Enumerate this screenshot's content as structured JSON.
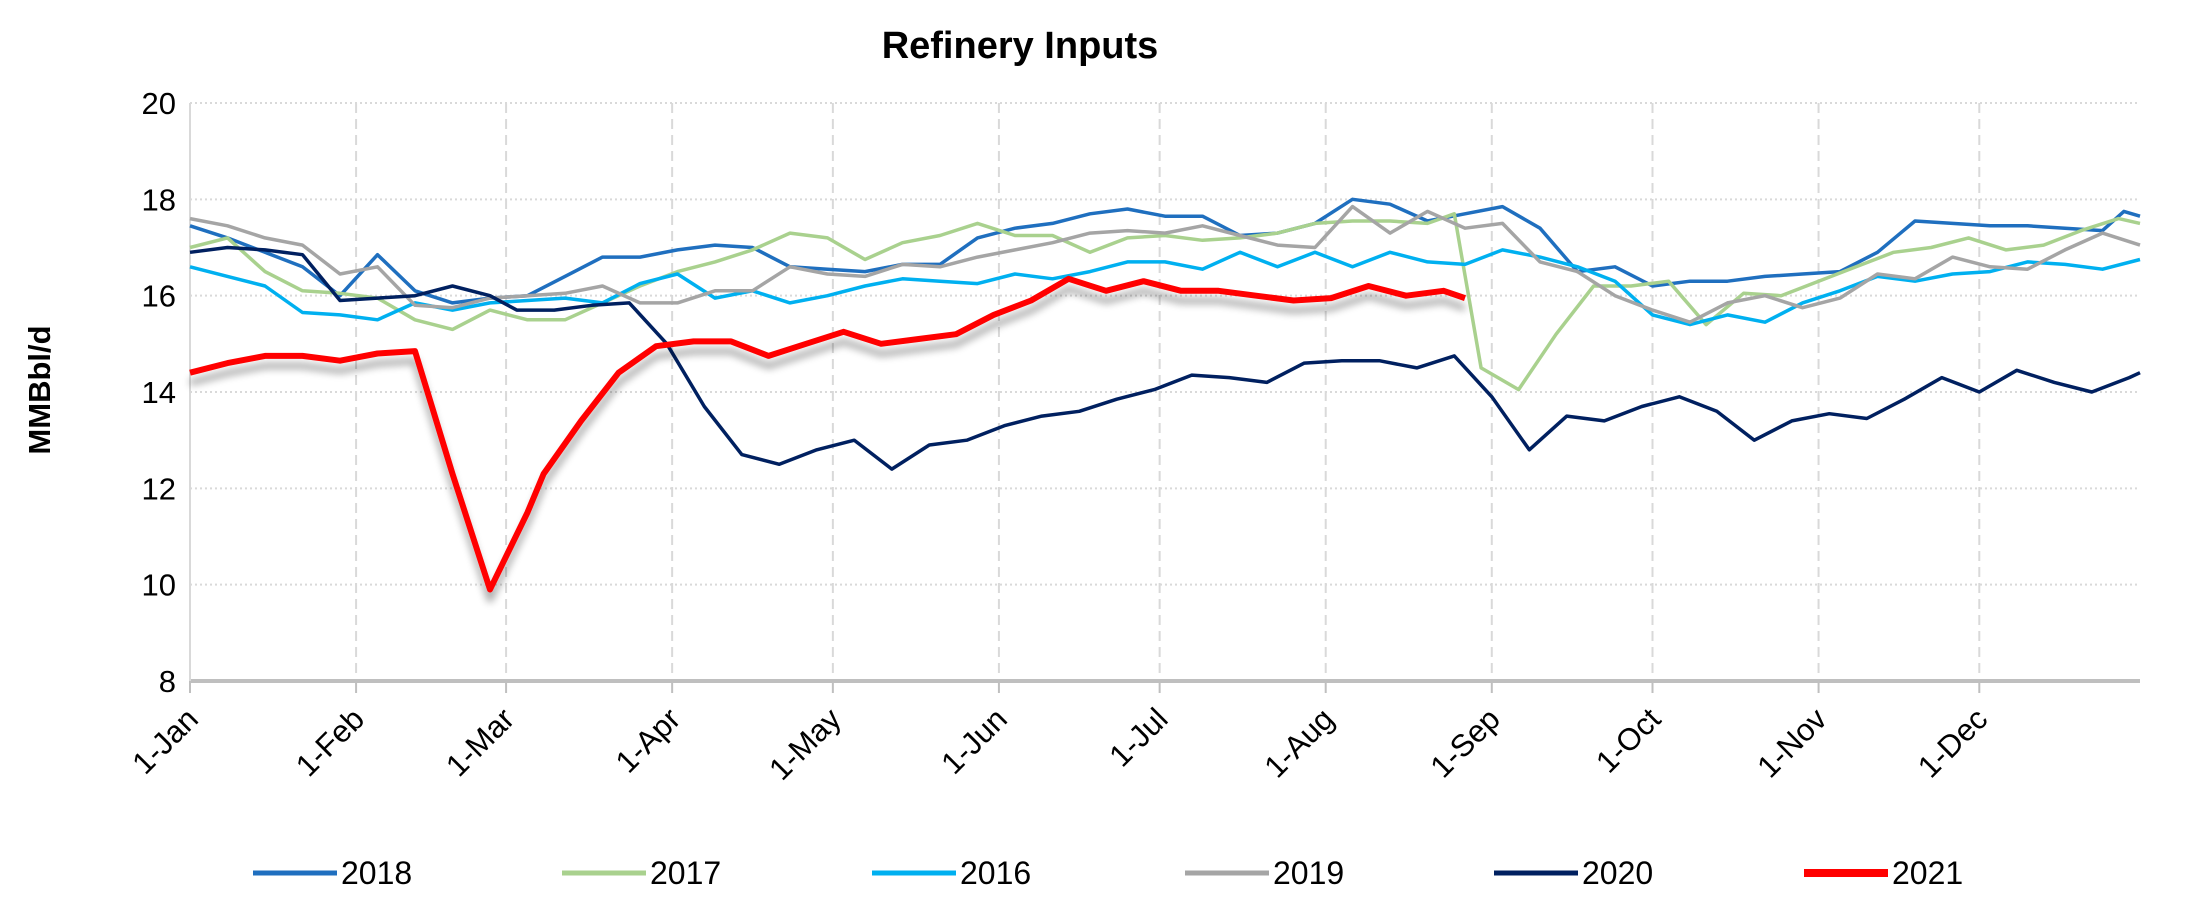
{
  "chart_data": {
    "type": "line",
    "title": "Refinery Inputs",
    "ylabel": "MMBbl/d",
    "xlabel": "",
    "ylim": [
      8,
      20
    ],
    "yticks": [
      8,
      10,
      12,
      14,
      16,
      18,
      20
    ],
    "xticks": [
      {
        "date": "01-01",
        "label": "1-Jan"
      },
      {
        "date": "02-01",
        "label": "1-Feb"
      },
      {
        "date": "03-01",
        "label": "1-Mar"
      },
      {
        "date": "04-01",
        "label": "1-Apr"
      },
      {
        "date": "05-01",
        "label": "1-May"
      },
      {
        "date": "06-01",
        "label": "1-Jun"
      },
      {
        "date": "07-01",
        "label": "1-Jul"
      },
      {
        "date": "08-01",
        "label": "1-Aug"
      },
      {
        "date": "09-01",
        "label": "1-Sep"
      },
      {
        "date": "10-01",
        "label": "1-Oct"
      },
      {
        "date": "11-01",
        "label": "1-Nov"
      },
      {
        "date": "12-01",
        "label": "1-Dec"
      }
    ],
    "grid": true,
    "legend": "bottom",
    "series": [
      {
        "name": "2018",
        "color": "#1f6fbf",
        "x": [
          "01-01",
          "01-08",
          "01-15",
          "01-22",
          "01-29",
          "02-05",
          "02-12",
          "02-19",
          "02-26",
          "03-05",
          "03-12",
          "03-19",
          "03-26",
          "04-02",
          "04-09",
          "04-16",
          "04-23",
          "04-30",
          "05-07",
          "05-14",
          "05-21",
          "05-28",
          "06-04",
          "06-11",
          "06-18",
          "06-25",
          "07-02",
          "07-09",
          "07-16",
          "07-23",
          "07-30",
          "08-06",
          "08-13",
          "08-20",
          "08-27",
          "09-03",
          "09-10",
          "09-17",
          "09-24",
          "10-01",
          "10-08",
          "10-15",
          "10-22",
          "10-29",
          "11-05",
          "11-12",
          "11-19",
          "11-26",
          "12-03",
          "12-10",
          "12-17",
          "12-24",
          "12-28",
          "12-31"
        ],
        "y": [
          17.45,
          17.2,
          16.9,
          16.6,
          16.0,
          16.85,
          16.1,
          15.85,
          15.95,
          16.0,
          16.4,
          16.8,
          16.8,
          16.95,
          17.05,
          17.0,
          16.6,
          16.55,
          16.5,
          16.65,
          16.65,
          17.2,
          17.4,
          17.5,
          17.7,
          17.8,
          17.65,
          17.65,
          17.25,
          17.3,
          17.5,
          18.0,
          17.9,
          17.55,
          17.7,
          17.85,
          17.4,
          16.5,
          16.6,
          16.2,
          16.3,
          16.3,
          16.4,
          16.45,
          16.5,
          16.9,
          17.55,
          17.5,
          17.45,
          17.45,
          17.4,
          17.35,
          17.75,
          17.65
        ]
      },
      {
        "name": "2017",
        "color": "#a9d18e",
        "x": [
          "01-01",
          "01-08",
          "01-15",
          "01-22",
          "01-29",
          "02-05",
          "02-12",
          "02-19",
          "02-26",
          "03-05",
          "03-12",
          "03-19",
          "03-26",
          "04-02",
          "04-09",
          "04-16",
          "04-23",
          "04-30",
          "05-07",
          "05-14",
          "05-21",
          "05-28",
          "06-04",
          "06-11",
          "06-18",
          "06-25",
          "07-02",
          "07-09",
          "07-16",
          "07-23",
          "07-30",
          "08-06",
          "08-13",
          "08-20",
          "08-25",
          "08-30",
          "09-06",
          "09-13",
          "09-20",
          "09-27",
          "10-04",
          "10-11",
          "10-18",
          "10-25",
          "11-01",
          "11-08",
          "11-15",
          "11-22",
          "11-29",
          "12-06",
          "12-13",
          "12-20",
          "12-27",
          "12-31"
        ],
        "y": [
          17.0,
          17.2,
          16.5,
          16.1,
          16.05,
          15.95,
          15.5,
          15.3,
          15.7,
          15.5,
          15.5,
          15.85,
          16.2,
          16.5,
          16.7,
          16.95,
          17.3,
          17.2,
          16.75,
          17.1,
          17.25,
          17.5,
          17.25,
          17.25,
          16.9,
          17.2,
          17.25,
          17.15,
          17.2,
          17.3,
          17.5,
          17.55,
          17.55,
          17.5,
          17.7,
          14.5,
          14.05,
          15.2,
          16.2,
          16.2,
          16.3,
          15.4,
          16.05,
          16.0,
          16.3,
          16.6,
          16.9,
          17.0,
          17.2,
          16.95,
          17.05,
          17.35,
          17.6,
          17.5
        ]
      },
      {
        "name": "2016",
        "color": "#00b0f0",
        "x": [
          "01-01",
          "01-08",
          "01-15",
          "01-22",
          "01-29",
          "02-05",
          "02-12",
          "02-19",
          "02-26",
          "03-05",
          "03-12",
          "03-19",
          "03-26",
          "04-02",
          "04-09",
          "04-16",
          "04-23",
          "04-30",
          "05-07",
          "05-14",
          "05-21",
          "05-28",
          "06-04",
          "06-11",
          "06-18",
          "06-25",
          "07-02",
          "07-09",
          "07-16",
          "07-23",
          "07-30",
          "08-06",
          "08-13",
          "08-20",
          "08-27",
          "09-03",
          "09-10",
          "09-17",
          "09-24",
          "10-01",
          "10-08",
          "10-15",
          "10-22",
          "10-29",
          "11-05",
          "11-12",
          "11-19",
          "11-26",
          "12-03",
          "12-10",
          "12-17",
          "12-24",
          "12-31"
        ],
        "y": [
          16.6,
          16.4,
          16.2,
          15.65,
          15.6,
          15.5,
          15.85,
          15.7,
          15.85,
          15.9,
          15.95,
          15.85,
          16.25,
          16.45,
          15.95,
          16.1,
          15.85,
          16.0,
          16.2,
          16.35,
          16.3,
          16.25,
          16.45,
          16.35,
          16.5,
          16.7,
          16.7,
          16.55,
          16.9,
          16.6,
          16.9,
          16.6,
          16.9,
          16.7,
          16.65,
          16.95,
          16.8,
          16.6,
          16.3,
          15.6,
          15.4,
          15.6,
          15.45,
          15.85,
          16.1,
          16.4,
          16.3,
          16.45,
          16.5,
          16.7,
          16.65,
          16.55,
          16.75
        ]
      },
      {
        "name": "2019",
        "color": "#a5a5a5",
        "x": [
          "01-01",
          "01-08",
          "01-15",
          "01-22",
          "01-29",
          "02-05",
          "02-12",
          "02-19",
          "02-26",
          "03-05",
          "03-12",
          "03-19",
          "03-26",
          "04-02",
          "04-09",
          "04-16",
          "04-23",
          "04-30",
          "05-07",
          "05-14",
          "05-21",
          "05-28",
          "06-04",
          "06-11",
          "06-18",
          "06-25",
          "07-02",
          "07-09",
          "07-16",
          "07-23",
          "07-30",
          "08-06",
          "08-13",
          "08-20",
          "08-27",
          "09-03",
          "09-10",
          "09-17",
          "09-24",
          "10-01",
          "10-08",
          "10-15",
          "10-22",
          "10-29",
          "11-05",
          "11-12",
          "11-19",
          "11-26",
          "12-03",
          "12-10",
          "12-17",
          "12-24",
          "12-31"
        ],
        "y": [
          17.6,
          17.45,
          17.2,
          17.05,
          16.45,
          16.6,
          15.8,
          15.75,
          15.95,
          16.0,
          16.05,
          16.2,
          15.85,
          15.85,
          16.1,
          16.1,
          16.6,
          16.45,
          16.4,
          16.65,
          16.6,
          16.8,
          16.95,
          17.1,
          17.3,
          17.35,
          17.3,
          17.45,
          17.25,
          17.05,
          17.0,
          17.85,
          17.3,
          17.75,
          17.4,
          17.5,
          16.7,
          16.5,
          16.0,
          15.7,
          15.45,
          15.85,
          16.0,
          15.75,
          15.95,
          16.45,
          16.35,
          16.8,
          16.6,
          16.55,
          16.95,
          17.3,
          17.05
        ]
      },
      {
        "name": "2020",
        "color": "#002060",
        "x": [
          "01-01",
          "01-08",
          "01-15",
          "01-22",
          "01-29",
          "02-05",
          "02-12",
          "02-19",
          "02-26",
          "03-03",
          "03-10",
          "03-17",
          "03-24",
          "03-31",
          "04-07",
          "04-14",
          "04-21",
          "04-28",
          "05-05",
          "05-12",
          "05-19",
          "05-26",
          "06-02",
          "06-09",
          "06-16",
          "06-23",
          "06-30",
          "07-07",
          "07-14",
          "07-21",
          "07-28",
          "08-04",
          "08-11",
          "08-18",
          "08-25",
          "09-01",
          "09-08",
          "09-15",
          "09-22",
          "09-29",
          "10-06",
          "10-13",
          "10-20",
          "10-27",
          "11-03",
          "11-10",
          "11-17",
          "11-24",
          "12-01",
          "12-08",
          "12-15",
          "12-22",
          "12-29",
          "12-31"
        ],
        "y": [
          16.9,
          17.0,
          16.95,
          16.85,
          15.9,
          15.95,
          16.0,
          16.2,
          16.0,
          15.7,
          15.7,
          15.8,
          15.85,
          15.0,
          13.7,
          12.7,
          12.5,
          12.8,
          13.0,
          12.4,
          12.9,
          13.0,
          13.3,
          13.5,
          13.6,
          13.85,
          14.05,
          14.35,
          14.3,
          14.2,
          14.6,
          14.65,
          14.65,
          14.5,
          14.75,
          13.9,
          12.8,
          13.5,
          13.4,
          13.7,
          13.9,
          13.6,
          13.0,
          13.4,
          13.55,
          13.45,
          13.85,
          14.3,
          14.0,
          14.45,
          14.2,
          14.0,
          14.3,
          14.4
        ]
      },
      {
        "name": "2021",
        "color": "#ff0000",
        "x": [
          "01-01",
          "01-08",
          "01-15",
          "01-22",
          "01-29",
          "02-05",
          "02-12",
          "02-19",
          "02-26",
          "03-05",
          "03-08",
          "03-15",
          "03-22",
          "03-29",
          "04-05",
          "04-12",
          "04-19",
          "04-26",
          "05-03",
          "05-10",
          "05-17",
          "05-24",
          "05-31",
          "06-07",
          "06-14",
          "06-21",
          "06-28",
          "07-05",
          "07-12",
          "07-19",
          "07-26",
          "08-02",
          "08-09",
          "08-16",
          "08-23",
          "08-27"
        ],
        "y": [
          14.4,
          14.6,
          14.75,
          14.75,
          14.65,
          14.8,
          14.85,
          12.3,
          9.9,
          11.5,
          12.3,
          13.4,
          14.4,
          14.95,
          15.05,
          15.05,
          14.75,
          15.0,
          15.25,
          15.0,
          15.1,
          15.2,
          15.6,
          15.9,
          16.35,
          16.1,
          16.3,
          16.1,
          16.1,
          16.0,
          15.9,
          15.95,
          16.2,
          16.0,
          16.1,
          15.95
        ]
      }
    ]
  }
}
